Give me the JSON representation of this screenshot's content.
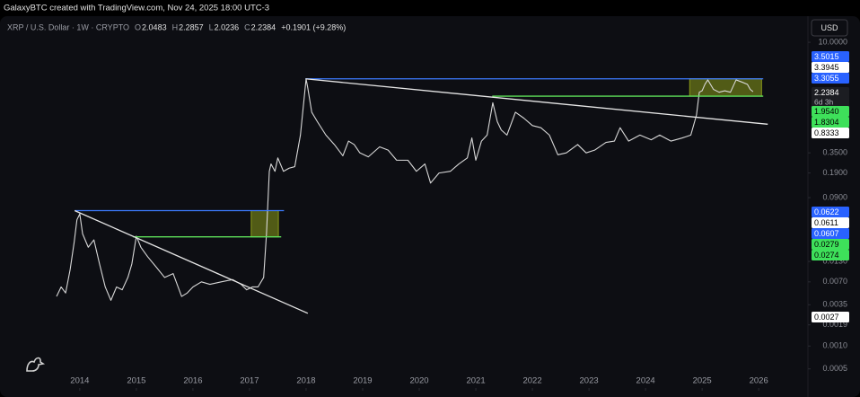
{
  "chart_data": {
    "type": "line",
    "credit": "GalaxyBTC created with TradingView.com, Nov 24, 2025 18:00 UTC-3",
    "symbol": "XRP / U.S. Dollar · 1W · CRYPTO",
    "ohlc": [
      {
        "key": "O",
        "value": 2.0483
      },
      {
        "key": "H",
        "value": 2.2857
      },
      {
        "key": "L",
        "value": 2.0236
      },
      {
        "key": "C",
        "value": 2.2384
      }
    ],
    "change": "+0.1901 (+9.28%)",
    "currency": "USD",
    "countdown": "6d 3h",
    "log_scale": true,
    "xlim": [
      2012.59,
      2026.87
    ],
    "xticks": [
      2014,
      2015,
      2016,
      2017,
      2018,
      2019,
      2020,
      2021,
      2022,
      2023,
      2024,
      2025,
      2026
    ],
    "ylim": [
      0.00028,
      13.9
    ],
    "yticks": [
      {
        "value": 10,
        "label": "10.0000"
      },
      {
        "value": 0.35,
        "label": "0.3500"
      },
      {
        "value": 0.19,
        "label": "0.1900"
      },
      {
        "value": 0.09,
        "label": "0.0900"
      },
      {
        "value": 0.013,
        "label": "0.0130"
      },
      {
        "value": 0.007,
        "label": "0.0070"
      },
      0.0035,
      0.0019,
      {
        "value": 0.001,
        "label": "0.0010"
      },
      0.0005
    ],
    "series": [
      {
        "name": "XRP",
        "color": "#d8d8d8",
        "x": [
          2013.59,
          2013.67,
          2013.75,
          2013.83,
          2013.9,
          2013.95,
          2014.0,
          2014.05,
          2014.15,
          2014.25,
          2014.35,
          2014.45,
          2014.55,
          2014.65,
          2014.75,
          2014.85,
          2014.92,
          2015.0,
          2015.08,
          2015.2,
          2015.35,
          2015.5,
          2015.65,
          2015.8,
          2015.9,
          2016.0,
          2016.15,
          2016.3,
          2016.5,
          2016.7,
          2016.85,
          2016.95,
          2017.05,
          2017.15,
          2017.25,
          2017.3,
          2017.35,
          2017.38,
          2017.45,
          2017.5,
          2017.6,
          2017.7,
          2017.8,
          2017.9,
          2018.0,
          2018.03,
          2018.1,
          2018.2,
          2018.35,
          2018.5,
          2018.65,
          2018.75,
          2018.85,
          2018.95,
          2019.1,
          2019.3,
          2019.45,
          2019.6,
          2019.8,
          2019.95,
          2020.1,
          2020.2,
          2020.35,
          2020.55,
          2020.7,
          2020.85,
          2020.93,
          2021.0,
          2021.1,
          2021.2,
          2021.3,
          2021.38,
          2021.45,
          2021.55,
          2021.7,
          2021.85,
          2022.0,
          2022.15,
          2022.3,
          2022.45,
          2022.6,
          2022.8,
          2022.95,
          2023.1,
          2023.3,
          2023.45,
          2023.55,
          2023.7,
          2023.9,
          2024.1,
          2024.25,
          2024.45,
          2024.65,
          2024.8,
          2024.9,
          2024.95,
          2025.0,
          2025.05,
          2025.1,
          2025.2,
          2025.3,
          2025.4,
          2025.5,
          2025.6,
          2025.7,
          2025.8,
          2025.85,
          2025.9
        ],
        "values": [
          0.0045,
          0.006,
          0.005,
          0.0102,
          0.023,
          0.046,
          0.055,
          0.03,
          0.02,
          0.025,
          0.012,
          0.006,
          0.004,
          0.006,
          0.0055,
          0.008,
          0.012,
          0.028,
          0.02,
          0.015,
          0.011,
          0.008,
          0.009,
          0.0045,
          0.005,
          0.006,
          0.007,
          0.0065,
          0.007,
          0.0075,
          0.0065,
          0.0055,
          0.006,
          0.006,
          0.008,
          0.03,
          0.2,
          0.25,
          0.2,
          0.3,
          0.2,
          0.22,
          0.23,
          0.6,
          3.3,
          2.5,
          1.2,
          0.9,
          0.6,
          0.45,
          0.32,
          0.5,
          0.45,
          0.35,
          0.31,
          0.42,
          0.38,
          0.28,
          0.28,
          0.2,
          0.25,
          0.14,
          0.19,
          0.2,
          0.25,
          0.3,
          0.55,
          0.28,
          0.5,
          0.6,
          1.6,
          0.9,
          0.7,
          0.6,
          1.2,
          1.0,
          0.8,
          0.75,
          0.6,
          0.33,
          0.35,
          0.45,
          0.35,
          0.38,
          0.48,
          0.5,
          0.75,
          0.5,
          0.6,
          0.52,
          0.6,
          0.5,
          0.55,
          0.6,
          1.1,
          2.2,
          2.3,
          2.8,
          3.2,
          2.4,
          2.2,
          2.3,
          2.2,
          3.2,
          3.0,
          2.8,
          2.4,
          2.2384
        ]
      }
    ],
    "drawings": [
      {
        "color": "#3d7bff",
        "x": [
          2013.91,
          2017.61
        ],
        "values": [
          0.0607,
          0.0607
        ]
      },
      {
        "color": "#5ee05a",
        "x": [
          2014.94,
          2017.56
        ],
        "values": [
          0.0274,
          0.0274
        ]
      },
      {
        "color": "#e6e6e6",
        "x": [
          2013.91,
          2018.03
        ],
        "values": [
          0.0607,
          0.0027
        ]
      },
      {
        "color": "#3d7bff",
        "x": [
          2017.99,
          2026.08
        ],
        "values": [
          3.3055,
          3.3055
        ]
      },
      {
        "color": "#5ee05a",
        "x": [
          2021.29,
          2026.08
        ],
        "values": [
          1.954,
          1.954
        ]
      },
      {
        "color": "#e6e6e6",
        "x": [
          2017.99,
          2026.16
        ],
        "values": [
          3.3055,
          0.8333
        ]
      }
    ],
    "zones": [
      {
        "color": "#8a9a1a",
        "x": [
          2017.03,
          2017.51
        ],
        "values": [
          0.0607,
          0.0274
        ]
      },
      {
        "color": "#8a9a1a",
        "x": [
          2024.78,
          2026.05
        ],
        "values": [
          3.3055,
          1.954
        ]
      }
    ],
    "price_labels": [
      {
        "value": 3.5015,
        "color": "#2962ff",
        "text_color": "#ffffff"
      },
      {
        "value": 3.3945,
        "color": "#ffffff",
        "text_color": "#000000"
      },
      {
        "value": 3.3055,
        "color": "#2962ff",
        "text_color": "#ffffff"
      },
      {
        "value": 2.2384,
        "color": "#1c1d22",
        "text_color": "#ffffff"
      },
      {
        "value": 1.954,
        "label": "1.9540",
        "color": "#3ee05a",
        "text_color": "#000000"
      },
      {
        "value": 1.8304,
        "color": "#3ee05a",
        "text_color": "#000000"
      },
      {
        "value": 0.8333,
        "color": "#ffffff",
        "text_color": "#000000"
      },
      {
        "value": 0.0622,
        "color": "#2962ff",
        "text_color": "#ffffff"
      },
      {
        "value": 0.0611,
        "color": "#ffffff",
        "text_color": "#000000"
      },
      {
        "value": 0.0607,
        "color": "#2962ff",
        "text_color": "#ffffff"
      },
      {
        "value": 0.0279,
        "color": "#3ee05a",
        "text_color": "#000000"
      },
      {
        "value": 0.0274,
        "color": "#3ee05a",
        "text_color": "#000000"
      },
      {
        "value": 0.0027,
        "color": "#ffffff",
        "text_color": "#000000"
      }
    ]
  }
}
